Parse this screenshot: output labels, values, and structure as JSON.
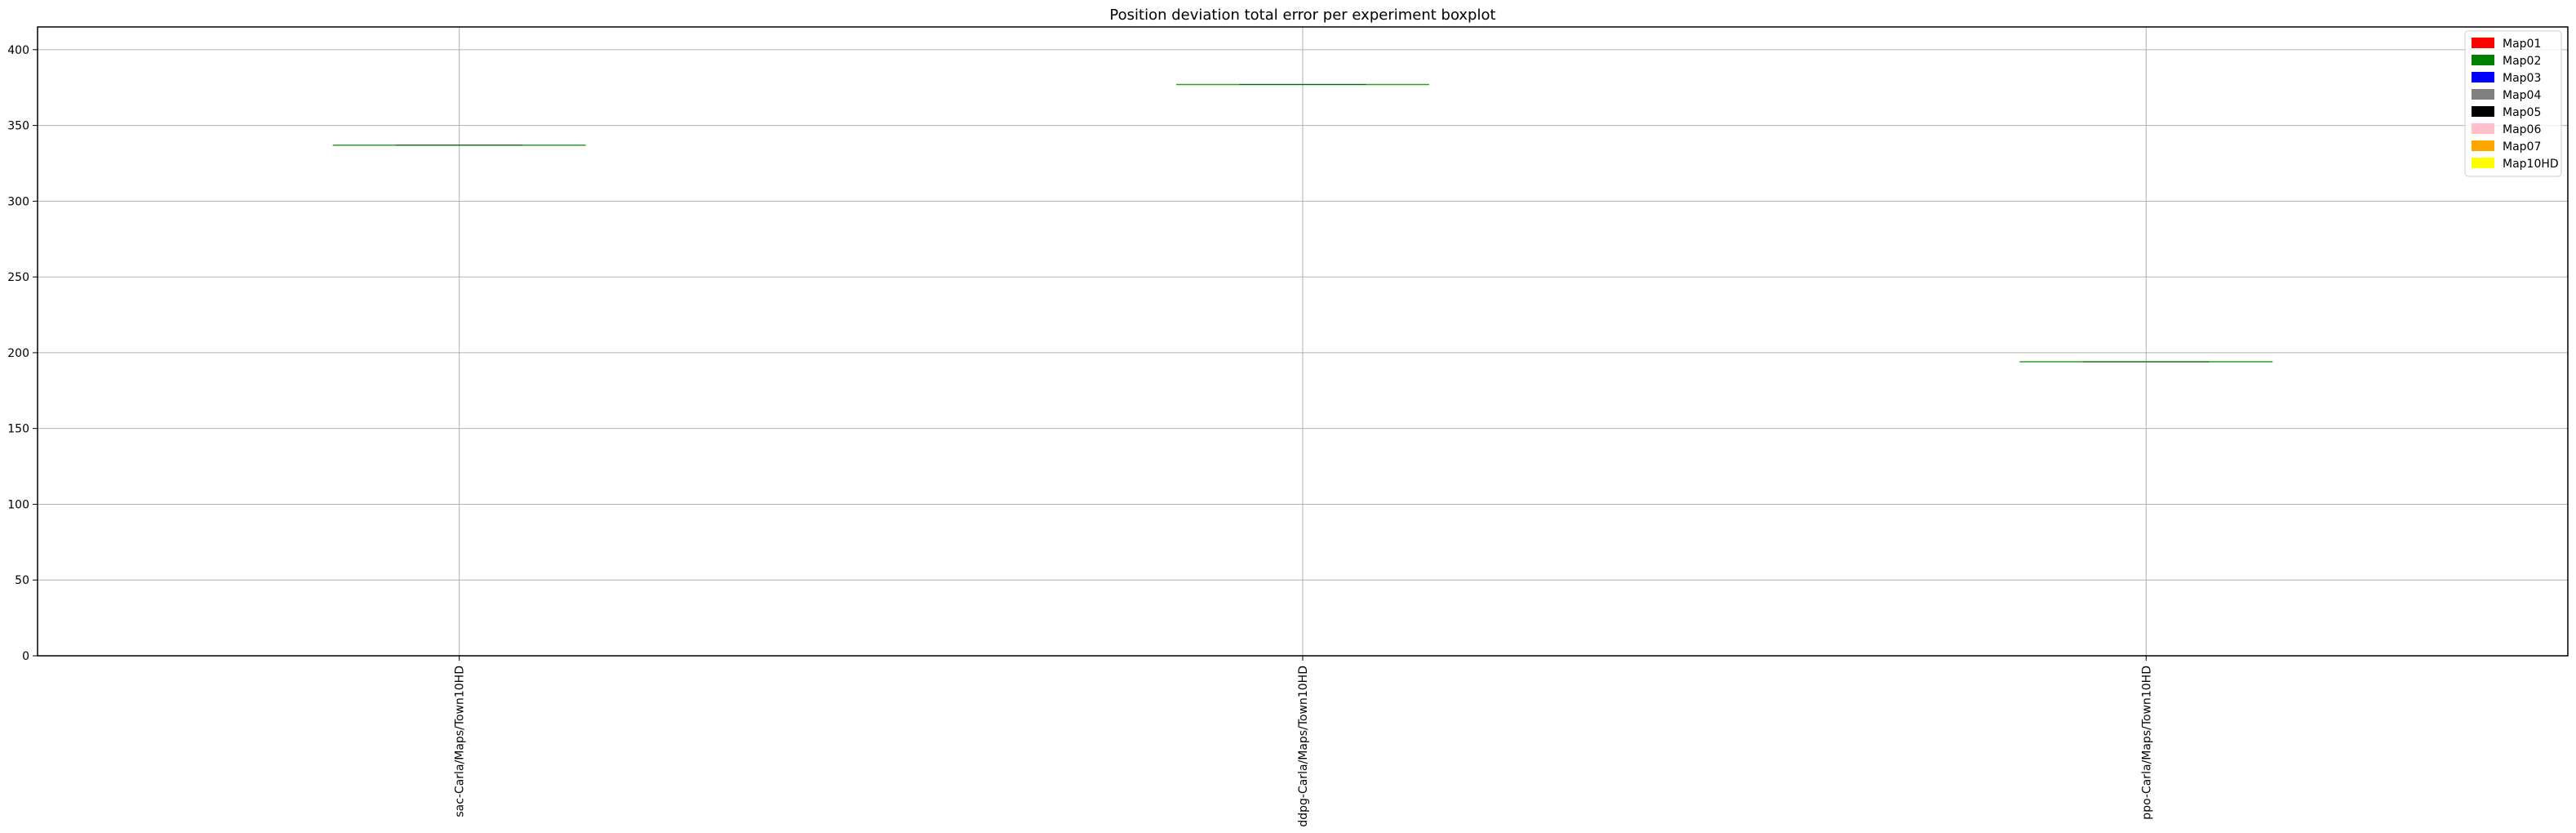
{
  "chart_data": {
    "type": "boxplot",
    "title": "Position deviation total error per experiment boxplot",
    "xlabel": "",
    "ylabel": "",
    "ylim": [
      0,
      415
    ],
    "yticks": [
      0,
      50,
      100,
      150,
      200,
      250,
      300,
      350,
      400
    ],
    "grid": true,
    "categories": [
      "sac-Carla/Maps/Town10HD",
      "ddpg-Carla/Maps/Town10HD",
      "ppo-Carla/Maps/Town10HD"
    ],
    "values": [
      337,
      377,
      194
    ],
    "median_color": "#2ca02c",
    "legend_position": "top-right",
    "legend": [
      {
        "label": "Map01",
        "color": "#ff0000"
      },
      {
        "label": "Map02",
        "color": "#008000"
      },
      {
        "label": "Map03",
        "color": "#0000ff"
      },
      {
        "label": "Map04",
        "color": "#808080"
      },
      {
        "label": "Map05",
        "color": "#000000"
      },
      {
        "label": "Map06",
        "color": "#ffc0cb"
      },
      {
        "label": "Map07",
        "color": "#ffa500"
      },
      {
        "label": "Map10HD",
        "color": "#ffff00"
      }
    ]
  }
}
